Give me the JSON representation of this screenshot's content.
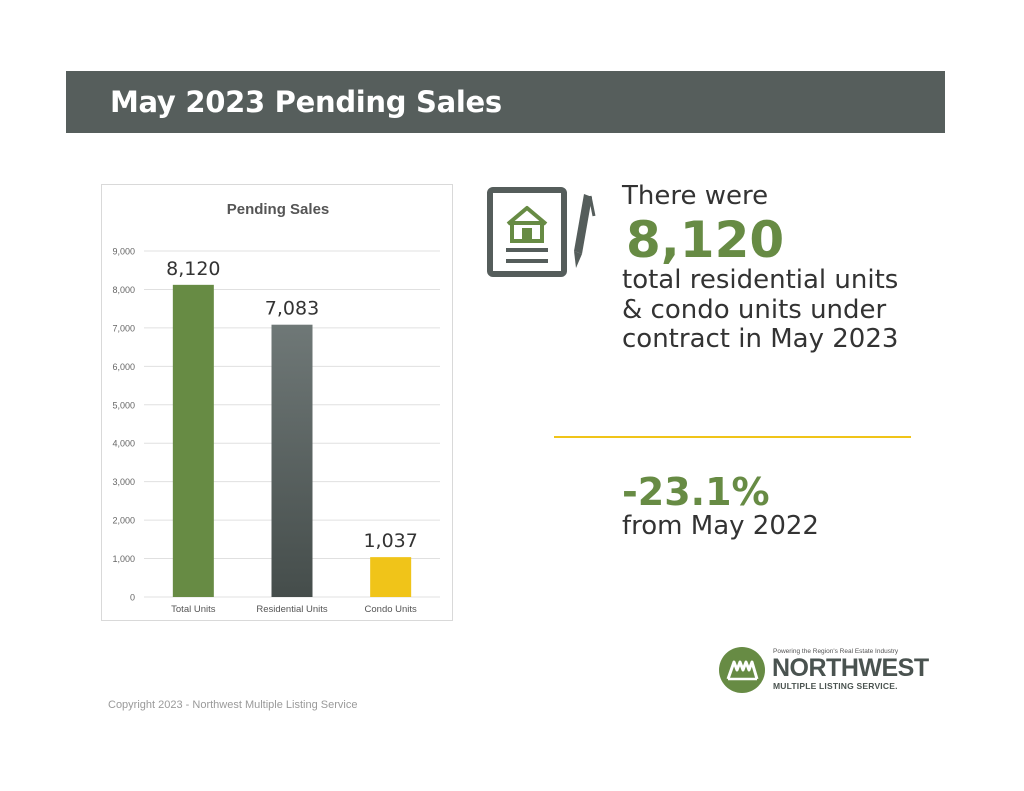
{
  "header": {
    "title": "May 2023 Pending Sales"
  },
  "chart_data": {
    "type": "bar",
    "title": "Pending Sales",
    "categories": [
      "Total Units",
      "Residential Units",
      "Condo Units"
    ],
    "values": [
      8120,
      7083,
      1037
    ],
    "value_labels": [
      "8,120",
      "7,083",
      "1,037"
    ],
    "colors": [
      "#678b44",
      "#5d6564",
      "#f0c419"
    ],
    "ylim": [
      0,
      9000
    ],
    "yticks": [
      0,
      1000,
      2000,
      3000,
      4000,
      5000,
      6000,
      7000,
      8000,
      9000
    ],
    "ytick_labels": [
      "0",
      "1,000",
      "2,000",
      "3,000",
      "4,000",
      "5,000",
      "6,000",
      "7,000",
      "8,000",
      "9,000"
    ],
    "grid": true,
    "xlabel": "",
    "ylabel": ""
  },
  "stats": {
    "intro": "There were",
    "total": "8,120",
    "description": "total residential units & condo units under contract in May 2023",
    "change": "-23.1%",
    "change_desc": "from May 2022"
  },
  "footer": {
    "copyright": "Copyright 2023 - Northwest Multiple Listing Service"
  },
  "logo": {
    "tagline": "Powering the Region's Real Estate Industry",
    "name": "NORTHWEST",
    "sub": "MULTIPLE LISTING SERVICE."
  },
  "icons": {
    "document": "house-document-icon",
    "pen": "pen-icon",
    "logo": "nwmls-logo-icon"
  }
}
